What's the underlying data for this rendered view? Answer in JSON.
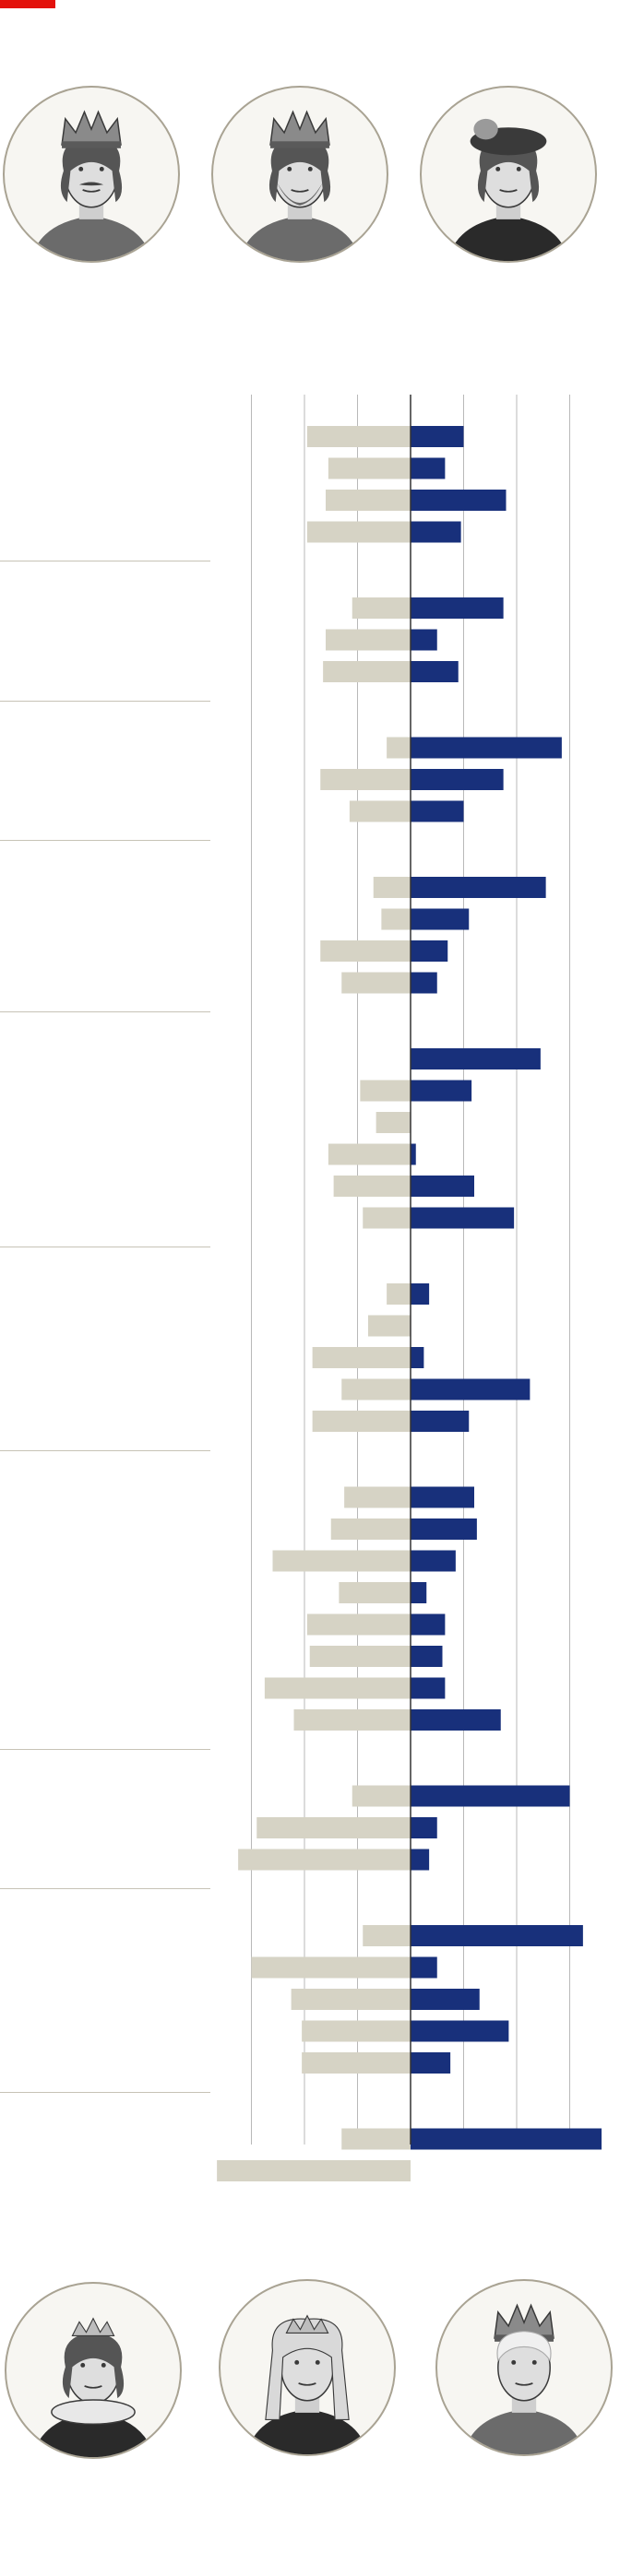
{
  "colors": {
    "accent": "#e3120b",
    "positive": "#18307b",
    "negative": "#d6d3c5",
    "grid": "#b9b9b9",
    "axis": "#333333",
    "portrait_ink": "#3a3a3a",
    "portrait_border": "#a9a393"
  },
  "portraits_top": [
    {
      "icon": "king-crowned-moustache-portrait-icon"
    },
    {
      "icon": "king-crowned-bearded-portrait-icon"
    },
    {
      "icon": "young-king-feathered-cap-portrait-icon"
    }
  ],
  "portraits_bottom": [
    {
      "icon": "queen-elizabeth-i-portrait-icon"
    },
    {
      "icon": "queen-victoria-portrait-icon"
    },
    {
      "icon": "queen-elizabeth-ii-portrait-icon"
    }
  ],
  "chart_data": {
    "type": "bar",
    "orientation": "horizontal-diverging",
    "title": "",
    "xlabel": "",
    "ylabel": "",
    "xlim": [
      -3.6,
      3.6
    ],
    "gridlines": [
      -3,
      -2,
      -1,
      0,
      1,
      2,
      3
    ],
    "legend": "none",
    "groups": [
      {
        "bars": [
          {
            "neg": -1.95,
            "pos": 1.0
          },
          {
            "neg": -1.55,
            "pos": 0.65
          },
          {
            "neg": -1.6,
            "pos": 1.8
          },
          {
            "neg": -1.95,
            "pos": 0.95
          }
        ]
      },
      {
        "bars": [
          {
            "neg": -1.1,
            "pos": 1.75
          },
          {
            "neg": -1.6,
            "pos": 0.5
          },
          {
            "neg": -1.65,
            "pos": 0.9
          }
        ]
      },
      {
        "bars": [
          {
            "neg": -0.45,
            "pos": 2.85
          },
          {
            "neg": -1.7,
            "pos": 1.75
          },
          {
            "neg": -1.15,
            "pos": 1.0
          }
        ]
      },
      {
        "bars": [
          {
            "neg": -0.7,
            "pos": 2.55
          },
          {
            "neg": -0.55,
            "pos": 1.1
          },
          {
            "neg": -1.7,
            "pos": 0.7
          },
          {
            "neg": -1.3,
            "pos": 0.5
          }
        ]
      },
      {
        "bars": [
          {
            "neg": 0.0,
            "pos": 2.45
          },
          {
            "neg": -0.95,
            "pos": 1.15
          },
          {
            "neg": -0.65,
            "pos": 0.0
          },
          {
            "neg": -1.55,
            "pos": 0.1
          },
          {
            "neg": -1.45,
            "pos": 1.2
          },
          {
            "neg": -0.9,
            "pos": 1.95
          }
        ]
      },
      {
        "bars": [
          {
            "neg": -0.45,
            "pos": 0.35
          },
          {
            "neg": -0.8,
            "pos": 0.0
          },
          {
            "neg": -1.85,
            "pos": 0.25
          },
          {
            "neg": -1.3,
            "pos": 2.25
          },
          {
            "neg": -1.85,
            "pos": 1.1
          }
        ]
      },
      {
        "bars": [
          {
            "neg": -1.25,
            "pos": 1.2
          },
          {
            "neg": -1.5,
            "pos": 1.25
          },
          {
            "neg": -2.6,
            "pos": 0.85
          },
          {
            "neg": -1.35,
            "pos": 0.3
          },
          {
            "neg": -1.95,
            "pos": 0.65
          },
          {
            "neg": -1.9,
            "pos": 0.6
          },
          {
            "neg": -2.75,
            "pos": 0.65
          },
          {
            "neg": -2.2,
            "pos": 1.7
          }
        ]
      },
      {
        "bars": [
          {
            "neg": -1.1,
            "pos": 3.0
          },
          {
            "neg": -2.9,
            "pos": 0.5
          },
          {
            "neg": -3.25,
            "pos": 0.35
          }
        ]
      },
      {
        "bars": [
          {
            "neg": -0.9,
            "pos": 3.25
          },
          {
            "neg": -3.0,
            "pos": 0.5
          },
          {
            "neg": -2.25,
            "pos": 1.3
          },
          {
            "neg": -2.05,
            "pos": 1.85
          },
          {
            "neg": -2.05,
            "pos": 0.75
          }
        ]
      },
      {
        "bars": [
          {
            "neg": -1.3,
            "pos": 3.6
          },
          {
            "neg": -3.65,
            "pos": 0.0
          }
        ]
      }
    ]
  }
}
